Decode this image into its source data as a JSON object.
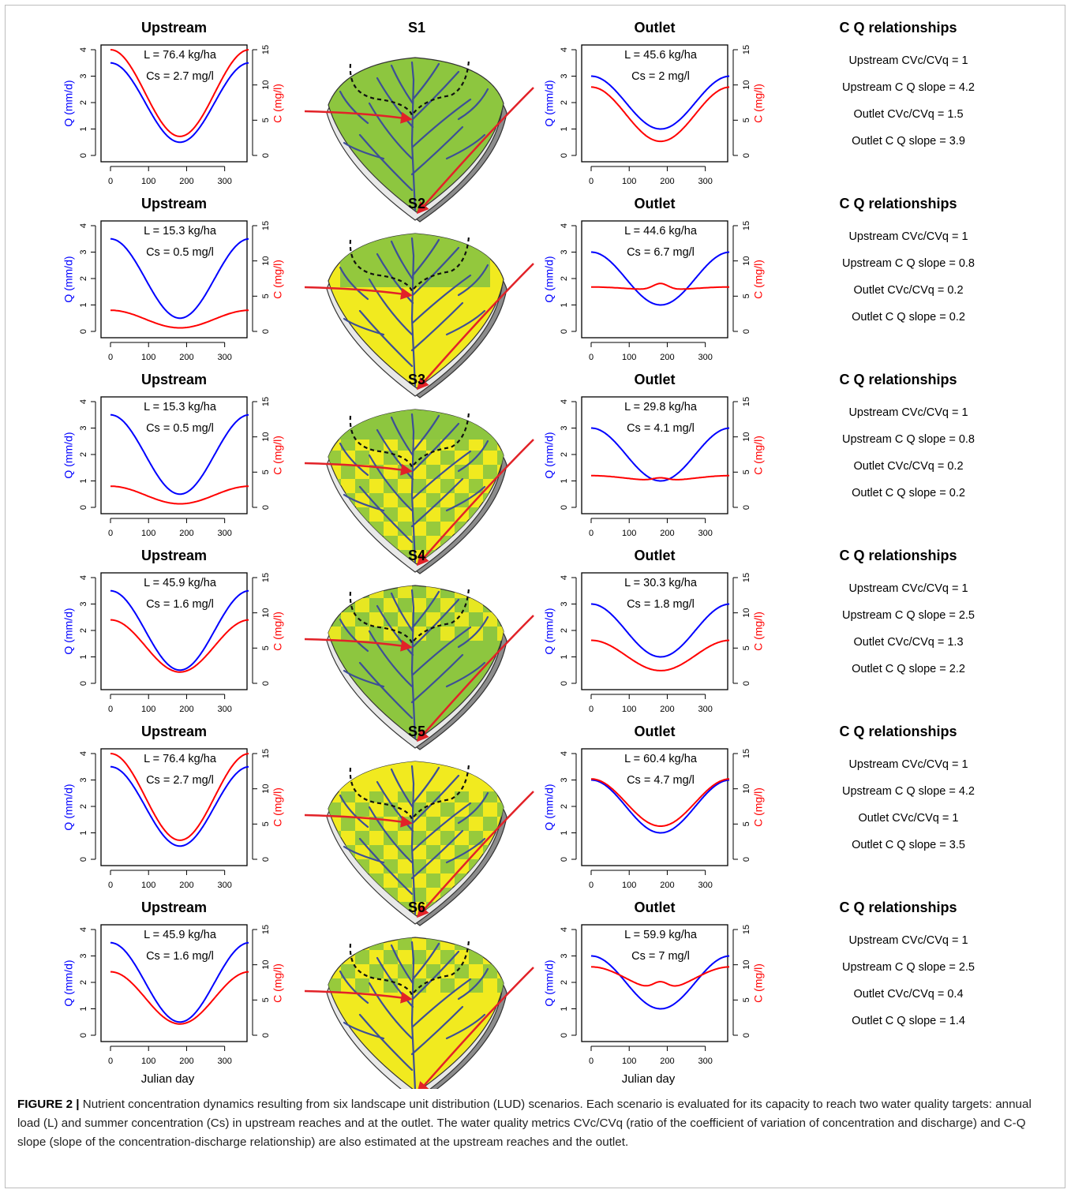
{
  "colors": {
    "discharge": "#0000ff",
    "concentration": "#ff0000",
    "green": "#8dc63f",
    "yellow": "#f1ea1f",
    "stream": "#3d4f96",
    "arrow": "#e22228"
  },
  "axes": {
    "x_ticks": [
      "0",
      "100",
      "200",
      "300"
    ],
    "q_ticks": [
      "0",
      "1",
      "2",
      "3",
      "4"
    ],
    "c_ticks": [
      "0",
      "5",
      "10",
      "15"
    ],
    "q_label": "Q (mm/d)",
    "c_label": "C (mg/l)",
    "x_label": "Julian day"
  },
  "panel_titles": {
    "upstream": "Upstream",
    "outlet": "Outlet",
    "cq": "C  Q relationships"
  },
  "chart_data": {
    "type": "line",
    "x_range": [
      0,
      365
    ],
    "q_range": [
      0,
      4
    ],
    "c_range": [
      0,
      15
    ],
    "series_note_q": "Q (mm/d)",
    "series_note_c": "C (mg/l)",
    "scenarios": [
      {
        "name": "S1",
        "landscape": "all-green",
        "upstream": {
          "L": "L = 76.4 kg/ha",
          "Cs": "Cs = 2.7 mg/l",
          "q": [
            0.5,
            3.5
          ],
          "c": [
            2.7,
            15.0
          ],
          "c_dip": 0
        },
        "outlet": {
          "L": "L = 45.6 kg/ha",
          "Cs": "Cs = 2 mg/l",
          "q": [
            1.0,
            3.0
          ],
          "c": [
            2.0,
            9.7
          ],
          "c_dip": 0
        },
        "cq": [
          "Upstream CVc/CVq = 1",
          "Upstream C  Q slope = 4.2",
          "Outlet CVc/CVq = 1.5",
          "Outlet C  Q slope = 3.9"
        ]
      },
      {
        "name": "S2",
        "landscape": "yellow-with-green-top",
        "upstream": {
          "L": "L = 15.3 kg/ha",
          "Cs": "Cs = 0.5 mg/l",
          "q": [
            0.5,
            3.5
          ],
          "c": [
            0.5,
            3.0
          ],
          "c_dip": 0
        },
        "outlet": {
          "L": "L = 44.6 kg/ha",
          "Cs": "Cs = 6.7 mg/l",
          "q": [
            1.0,
            3.0
          ],
          "c": [
            5.9,
            6.3
          ],
          "c_dip": 0.9
        },
        "cq": [
          "Upstream CVc/CVq = 1",
          "Upstream C  Q slope = 0.8",
          "Outlet CVc/CVq = 0.2",
          "Outlet C  Q slope =   0.2"
        ]
      },
      {
        "name": "S3",
        "landscape": "checker-green-top",
        "upstream": {
          "L": "L = 15.3 kg/ha",
          "Cs": "Cs = 0.5 mg/l",
          "q": [
            0.5,
            3.5
          ],
          "c": [
            0.5,
            3.0
          ],
          "c_dip": 0
        },
        "outlet": {
          "L": "L = 29.8 kg/ha",
          "Cs": "Cs = 4.1 mg/l",
          "q": [
            1.0,
            3.0
          ],
          "c": [
            3.8,
            4.5
          ],
          "c_dip": 0.4
        },
        "cq": [
          "Upstream CVc/CVq = 1",
          "Upstream C  Q slope = 0.8",
          "Outlet CVc/CVq = 0.2",
          "Outlet C  Q slope = 0.2"
        ]
      },
      {
        "name": "S4",
        "landscape": "green-checker-top",
        "upstream": {
          "L": "L = 45.9 kg/ha",
          "Cs": "Cs = 1.6 mg/l",
          "q": [
            0.5,
            3.5
          ],
          "c": [
            1.6,
            9.0
          ],
          "c_dip": 0
        },
        "outlet": {
          "L": "L = 30.3 kg/ha",
          "Cs": "Cs = 1.8 mg/l",
          "q": [
            1.0,
            3.0
          ],
          "c": [
            1.8,
            6.1
          ],
          "c_dip": 0
        },
        "cq": [
          "Upstream CVc/CVq = 1",
          "Upstream C  Q slope = 2.5",
          "Outlet CVc/CVq = 1.3",
          "Outlet C  Q slope = 2.2"
        ]
      },
      {
        "name": "S5",
        "landscape": "checker-yellow-top",
        "upstream": {
          "L": "L = 76.4 kg/ha",
          "Cs": "Cs = 2.7 mg/l",
          "q": [
            0.5,
            3.5
          ],
          "c": [
            2.7,
            15.0
          ],
          "c_dip": 0
        },
        "outlet": {
          "L": "L = 60.4 kg/ha",
          "Cs": "Cs = 4.7 mg/l",
          "q": [
            1.0,
            3.0
          ],
          "c": [
            4.7,
            11.4
          ],
          "c_dip": 0
        },
        "cq": [
          "Upstream CVc/CVq = 1",
          "Upstream C  Q slope = 4.2",
          "Outlet CVc/CVq = 1",
          "Outlet C  Q slope = 3.5"
        ]
      },
      {
        "name": "S6",
        "landscape": "yellow-checker-top",
        "upstream": {
          "L": "L = 45.9 kg/ha",
          "Cs": "Cs = 1.6 mg/l",
          "q": [
            0.5,
            3.5
          ],
          "c": [
            1.6,
            9.0
          ],
          "c_dip": 0
        },
        "outlet": {
          "L": "L = 59.9 kg/ha",
          "Cs": "Cs = 7 mg/l",
          "q": [
            1.0,
            3.0
          ],
          "c": [
            6.5,
            9.7
          ],
          "c_dip": 1.1
        },
        "cq": [
          "Upstream CVc/CVq = 1",
          "Upstream C  Q slope = 2.5",
          "Outlet CVc/CVq = 0.4",
          "Outlet C  Q slope = 1.4"
        ]
      }
    ]
  },
  "caption": {
    "label": "FIGURE 2 |",
    "text": " Nutrient concentration dynamics resulting from six landscape unit distribution (LUD) scenarios. Each scenario is evaluated for its capacity to reach two water quality targets: annual load (L) and summer concentration (Cs) in upstream reaches and at the outlet. The water quality metrics CVc/CVq (ratio of the coefficient of variation of concentration and discharge) and C-Q slope (slope of the concentration-discharge relationship) are also estimated at the upstream reaches and the outlet."
  }
}
